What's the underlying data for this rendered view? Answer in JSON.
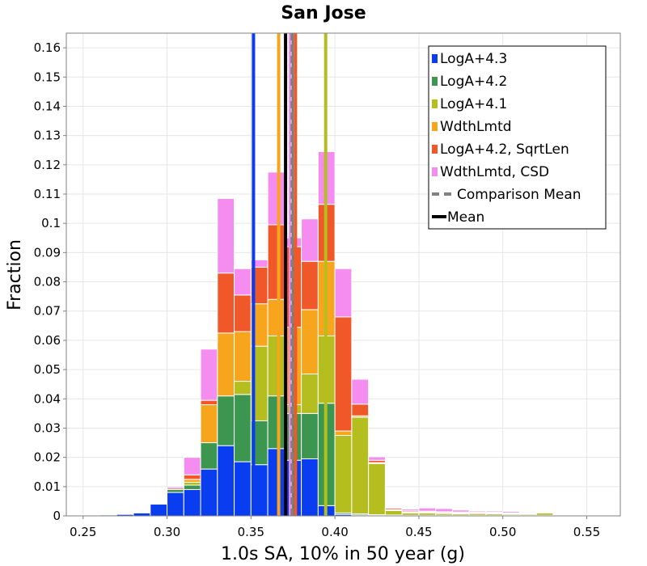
{
  "chart_data": {
    "type": "bar",
    "stacked": true,
    "title": "San Jose",
    "xlabel": "1.0s SA, 10% in 50 year (g)",
    "ylabel": "Fraction",
    "xlim": [
      0.24,
      0.57
    ],
    "ylim": [
      0,
      0.165
    ],
    "x_ticks": [
      0.25,
      0.3,
      0.35,
      0.4,
      0.45,
      0.5,
      0.55
    ],
    "x_tick_labels": [
      "0.25",
      "0.30",
      "0.35",
      "0.40",
      "0.45",
      "0.50",
      "0.55"
    ],
    "y_ticks": [
      0,
      0.01,
      0.02,
      0.03,
      0.04,
      0.05,
      0.06,
      0.07,
      0.08,
      0.09,
      0.1,
      0.11,
      0.12,
      0.13,
      0.14,
      0.15,
      0.16
    ],
    "y_tick_labels": [
      "0",
      "0.01",
      "0.02",
      "0.03",
      "0.04",
      "0.05",
      "0.06",
      "0.07",
      "0.08",
      "0.09",
      "0.1",
      "0.11",
      "0.12",
      "0.13",
      "0.14",
      "0.15",
      "0.16"
    ],
    "grid": true,
    "bin_width": 0.01,
    "bin_centers": [
      0.255,
      0.265,
      0.275,
      0.285,
      0.295,
      0.305,
      0.315,
      0.325,
      0.335,
      0.345,
      0.355,
      0.365,
      0.375,
      0.385,
      0.395,
      0.405,
      0.415,
      0.425,
      0.435,
      0.445,
      0.455,
      0.465,
      0.475,
      0.485,
      0.495,
      0.505,
      0.515,
      0.525,
      0.535,
      0.545,
      0.555
    ],
    "series": [
      {
        "name": "LogA+4.3",
        "color": "#0a3cf0",
        "values": [
          0.0002,
          0.0003,
          0.0005,
          0.001,
          0.004,
          0.008,
          0.009,
          0.016,
          0.024,
          0.0185,
          0.0175,
          0.023,
          0.019,
          0.0195,
          0.0035,
          0.0005,
          0.0003,
          0.0002,
          0.0001,
          0.0001,
          0.0001,
          0.0001,
          0.0001,
          0.0001,
          0.0001,
          0.0001,
          0.0001,
          0.0001,
          0.0001,
          0.0001,
          0.0001
        ]
      },
      {
        "name": "LogA+4.2",
        "color": "#3c9650",
        "values": [
          0,
          0,
          0,
          0,
          0,
          0.001,
          0.0015,
          0.009,
          0.017,
          0.023,
          0.015,
          0.018,
          0.016,
          0.0155,
          0.035,
          0.0005,
          0.0004,
          0.0002,
          0.0002,
          0.0001,
          0.0001,
          0.0001,
          0.0001,
          0.0001,
          0.0001,
          0.0001,
          0.0001,
          0.0001,
          0.0001,
          0.0001,
          0.0001
        ]
      },
      {
        "name": "LogA+4.1",
        "color": "#b4be1e",
        "values": [
          0,
          0,
          0,
          0,
          0,
          0,
          0.001,
          0,
          0,
          0.0045,
          0.0255,
          0.0205,
          0.003,
          0.0135,
          0.023,
          0.0265,
          0.033,
          0.0175,
          0.0015,
          0.0008,
          0.0008,
          0.0006,
          0.0005,
          0.0006,
          0.0005,
          0.0004,
          0.0004,
          0.0008,
          0.0002,
          0.0002,
          0.0002
        ]
      },
      {
        "name": "WdthLmtd",
        "color": "#f8a51e",
        "values": [
          0,
          0,
          0,
          0,
          0,
          0,
          0.001,
          0.013,
          0.0215,
          0.017,
          0.0145,
          0.0125,
          0.0265,
          0.022,
          0.0255,
          0.0015,
          0.0005,
          0.0003,
          0.0003,
          0.0003,
          0.0003,
          0.0003,
          0.0003,
          0.0003,
          0.0003,
          0.0002,
          0.0002,
          0.0003,
          0.0002,
          0.0002,
          0.0002
        ]
      },
      {
        "name": "LogA+4.2, SqrtLen",
        "color": "#f0582a",
        "values": [
          0,
          0,
          0,
          0,
          0,
          0.0005,
          0.0015,
          0.0015,
          0.0205,
          0.0125,
          0.0125,
          0.0255,
          0.0275,
          0.0165,
          0.0195,
          0.039,
          0.004,
          0.0008,
          0.0005,
          0.0004,
          0.0003,
          0.0003,
          0.0003,
          0.0003,
          0.0003,
          0.0002,
          0.0002,
          0.0002,
          0.0002,
          0.0002,
          0.0002
        ]
      },
      {
        "name": "WdthLmtd, CSD",
        "color": "#f58cf0",
        "values": [
          0,
          0,
          0,
          0,
          0,
          0.0005,
          0.006,
          0.0175,
          0.0255,
          0.009,
          0.0025,
          0.018,
          0.003,
          0.0145,
          0.018,
          0.0165,
          0.0085,
          0.0012,
          0.0003,
          0.0006,
          0.0011,
          0.0011,
          0.0007,
          0.0004,
          0.0004,
          0.0005,
          0.0003,
          0.0002,
          0.0002,
          0.0002,
          0.0001
        ]
      }
    ],
    "vertical_lines": [
      {
        "series": "LogA+4.3",
        "x": 0.3515,
        "color": "#0a3cf0",
        "style": "solid"
      },
      {
        "series": "LogA+4.2",
        "x": 0.3745,
        "color": "#3c9650",
        "style": "solid"
      },
      {
        "series": "LogA+4.1",
        "x": 0.3945,
        "color": "#b4be1e",
        "style": "solid"
      },
      {
        "series": "WdthLmtd",
        "x": 0.3665,
        "color": "#f8a51e",
        "style": "solid"
      },
      {
        "series": "LogA+4.2, SqrtLen",
        "x": 0.3765,
        "color": "#f0582a",
        "style": "solid"
      },
      {
        "series": "WdthLmtd, CSD",
        "x": 0.3735,
        "color": "#f58cf0",
        "style": "solid"
      },
      {
        "series": "Comparison Mean",
        "x": 0.3745,
        "color": "#808080",
        "style": "dashed"
      },
      {
        "series": "Mean",
        "x": 0.3706,
        "color": "#000000",
        "style": "solid"
      }
    ],
    "legend": {
      "placement": "top-right",
      "entries": [
        {
          "label": "LogA+4.3",
          "color": "#0a3cf0",
          "marker": "square"
        },
        {
          "label": "LogA+4.2",
          "color": "#3c9650",
          "marker": "square"
        },
        {
          "label": "LogA+4.1",
          "color": "#b4be1e",
          "marker": "square"
        },
        {
          "label": "WdthLmtd",
          "color": "#f8a51e",
          "marker": "square"
        },
        {
          "label": "LogA+4.2, SqrtLen",
          "color": "#f0582a",
          "marker": "square"
        },
        {
          "label": "WdthLmtd, CSD",
          "color": "#f58cf0",
          "marker": "square"
        },
        {
          "label": "Comparison Mean",
          "color": "#808080",
          "marker": "dashed-line"
        },
        {
          "label": "Mean",
          "color": "#000000",
          "marker": "line"
        }
      ]
    }
  }
}
